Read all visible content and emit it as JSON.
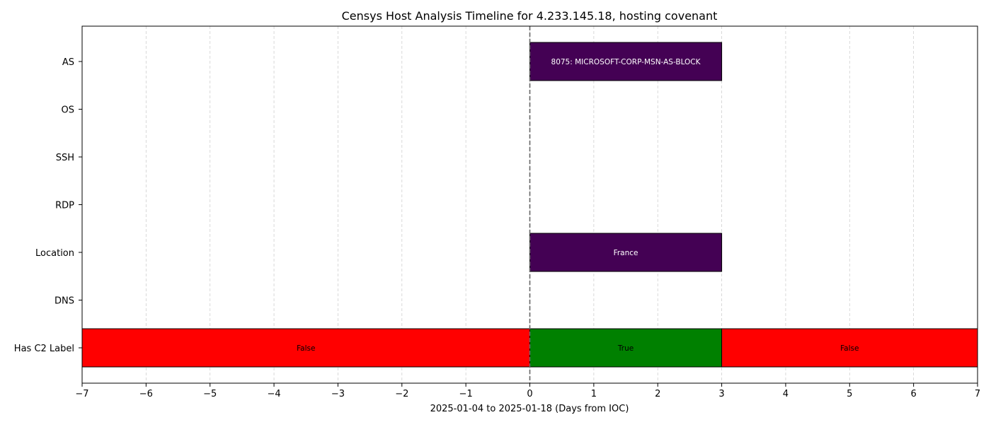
{
  "chart_data": {
    "type": "timeline",
    "title": "Censys Host Analysis Timeline for 4.233.145.18, hosting covenant",
    "xlabel": "2025-01-04 to 2025-01-18 (Days from IOC)",
    "ylabel": "",
    "xlim": [
      -7,
      7
    ],
    "xticks": [
      -7,
      -6,
      -5,
      -4,
      -3,
      -2,
      -1,
      0,
      1,
      2,
      3,
      4,
      5,
      6,
      7
    ],
    "xtick_labels": [
      "−7",
      "−6",
      "−5",
      "−4",
      "−3",
      "−2",
      "−1",
      "0",
      "1",
      "2",
      "3",
      "4",
      "5",
      "6",
      "7"
    ],
    "grid": "x-dashed",
    "ioc_marker_x": 0,
    "categories": [
      "AS",
      "OS",
      "SSH",
      "RDP",
      "Location",
      "DNS",
      "Has C2 Label"
    ],
    "segments": [
      {
        "category": "AS",
        "start": 0,
        "end": 3,
        "label": "8075: MICROSOFT-CORP-MSN-AS-BLOCK",
        "color": "#440154",
        "text_color": "#ffffff"
      },
      {
        "category": "Location",
        "start": 0,
        "end": 3,
        "label": "France",
        "color": "#440154",
        "text_color": "#ffffff"
      },
      {
        "category": "Has C2 Label",
        "start": -7,
        "end": 0,
        "label": "False",
        "color": "#ff0000",
        "text_color": "#000000"
      },
      {
        "category": "Has C2 Label",
        "start": 0,
        "end": 3,
        "label": "True",
        "color": "#008000",
        "text_color": "#000000"
      },
      {
        "category": "Has C2 Label",
        "start": 3,
        "end": 7,
        "label": "False",
        "color": "#ff0000",
        "text_color": "#000000"
      }
    ]
  }
}
